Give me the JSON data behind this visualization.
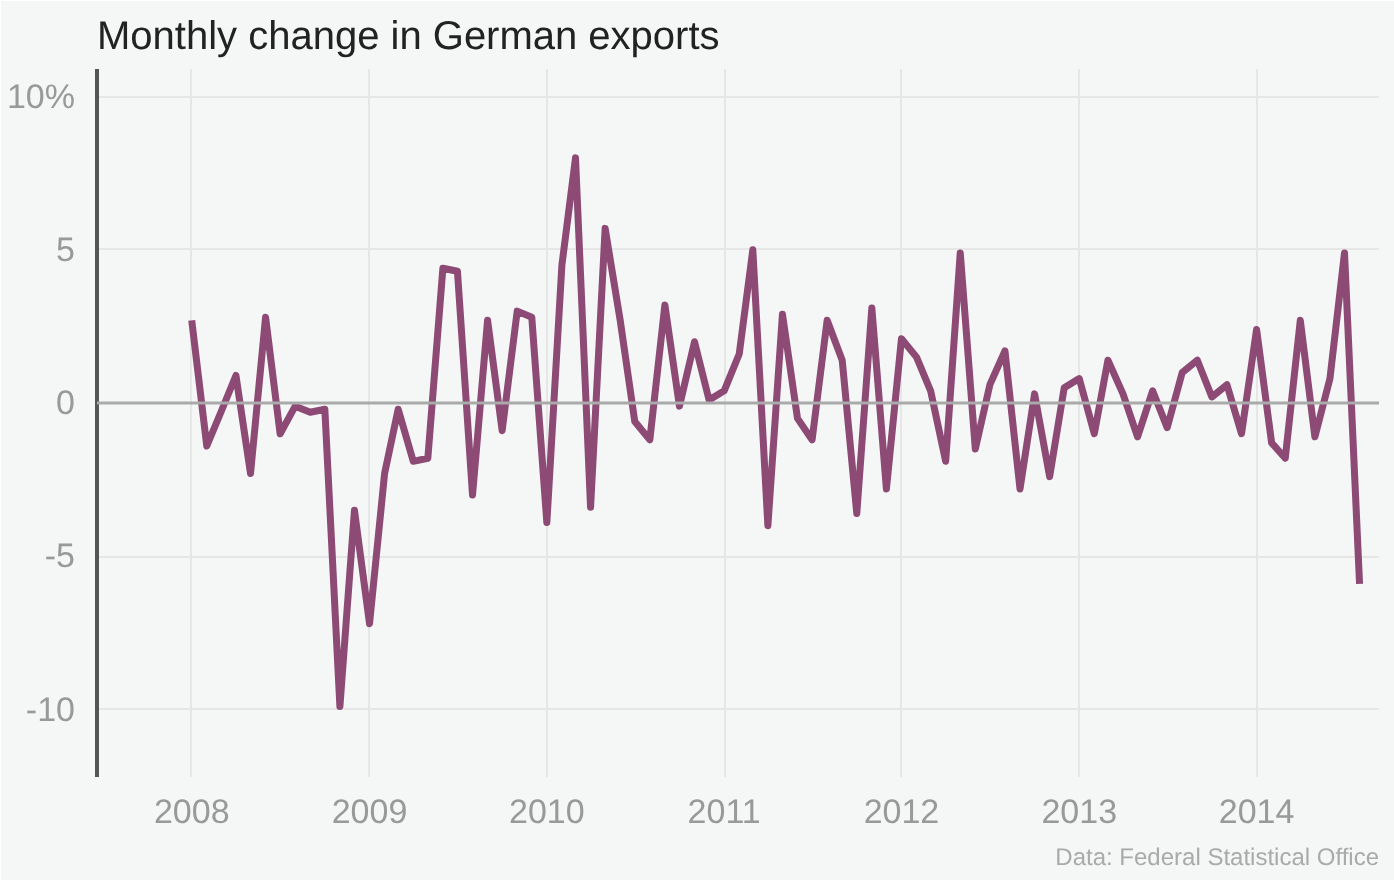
{
  "chart_data": {
    "type": "line",
    "title": "Monthly change in German exports",
    "annotations": [
      "Data: Federal Statistical Office"
    ],
    "x": [
      "2008-01",
      "2008-02",
      "2008-03",
      "2008-04",
      "2008-05",
      "2008-06",
      "2008-07",
      "2008-08",
      "2008-09",
      "2008-10",
      "2008-11",
      "2008-12",
      "2009-01",
      "2009-02",
      "2009-03",
      "2009-04",
      "2009-05",
      "2009-06",
      "2009-07",
      "2009-08",
      "2009-09",
      "2009-10",
      "2009-11",
      "2009-12",
      "2010-01",
      "2010-02",
      "2010-03",
      "2010-04",
      "2010-05",
      "2010-06",
      "2010-07",
      "2010-08",
      "2010-09",
      "2010-10",
      "2010-11",
      "2010-12",
      "2011-01",
      "2011-02",
      "2011-03",
      "2011-04",
      "2011-05",
      "2011-06",
      "2011-07",
      "2011-08",
      "2011-09",
      "2011-10",
      "2011-11",
      "2011-12",
      "2012-01",
      "2012-02",
      "2012-03",
      "2012-04",
      "2012-05",
      "2012-06",
      "2012-07",
      "2012-08",
      "2012-09",
      "2012-10",
      "2012-11",
      "2012-12",
      "2013-01",
      "2013-02",
      "2013-03",
      "2013-04",
      "2013-05",
      "2013-06",
      "2013-07",
      "2013-08",
      "2013-09",
      "2013-10",
      "2013-11",
      "2013-12",
      "2014-01",
      "2014-02",
      "2014-03",
      "2014-04",
      "2014-05",
      "2014-06",
      "2014-07",
      "2014-08"
    ],
    "series": [
      {
        "color": "#8c4a74",
        "values": [
          2.7,
          -1.4,
          -0.3,
          0.9,
          -2.3,
          2.8,
          -1.0,
          -0.1,
          -0.3,
          -0.2,
          -9.9,
          -3.5,
          -7.2,
          -2.3,
          -0.2,
          -1.9,
          -1.8,
          4.4,
          4.3,
          -3.0,
          2.7,
          -0.9,
          3.0,
          2.8,
          -3.9,
          4.5,
          8.0,
          -3.4,
          5.7,
          2.7,
          -0.6,
          -1.2,
          3.2,
          -0.1,
          2.0,
          0.1,
          0.4,
          1.6,
          5.0,
          -4.0,
          2.9,
          -0.5,
          -1.2,
          2.7,
          1.4,
          -3.6,
          3.1,
          -2.8,
          2.1,
          1.5,
          0.4,
          -1.9,
          4.9,
          -1.5,
          0.6,
          1.7,
          -2.8,
          0.3,
          -2.4,
          0.5,
          0.8,
          -1.0,
          1.4,
          0.3,
          -1.1,
          0.4,
          -0.8,
          1.0,
          1.4,
          0.2,
          0.6,
          -1.0,
          2.4,
          -1.3,
          -1.8,
          2.7,
          -1.1,
          0.8,
          4.9,
          -5.9
        ]
      }
    ],
    "xlim": [
      "2007-06-20",
      "2014-09-10"
    ],
    "xticks": [
      {
        "value": "2008-01-01",
        "label": "2008"
      },
      {
        "value": "2009-01-01",
        "label": "2009"
      },
      {
        "value": "2010-01-01",
        "label": "2010"
      },
      {
        "value": "2011-01-01",
        "label": "2011"
      },
      {
        "value": "2012-01-01",
        "label": "2012"
      },
      {
        "value": "2013-01-01",
        "label": "2013"
      },
      {
        "value": "2014-01-01",
        "label": "2014"
      }
    ],
    "ylim": [
      -12.2,
      10.9
    ],
    "yticks": [
      -10,
      -5,
      0,
      5,
      {
        "value": 10,
        "label": "10%"
      }
    ],
    "ref_lines": [
      {
        "axis": "y",
        "value": 0,
        "color": "#aaaaaa"
      }
    ],
    "grid": true,
    "marker": "none",
    "line_style": "solid"
  }
}
